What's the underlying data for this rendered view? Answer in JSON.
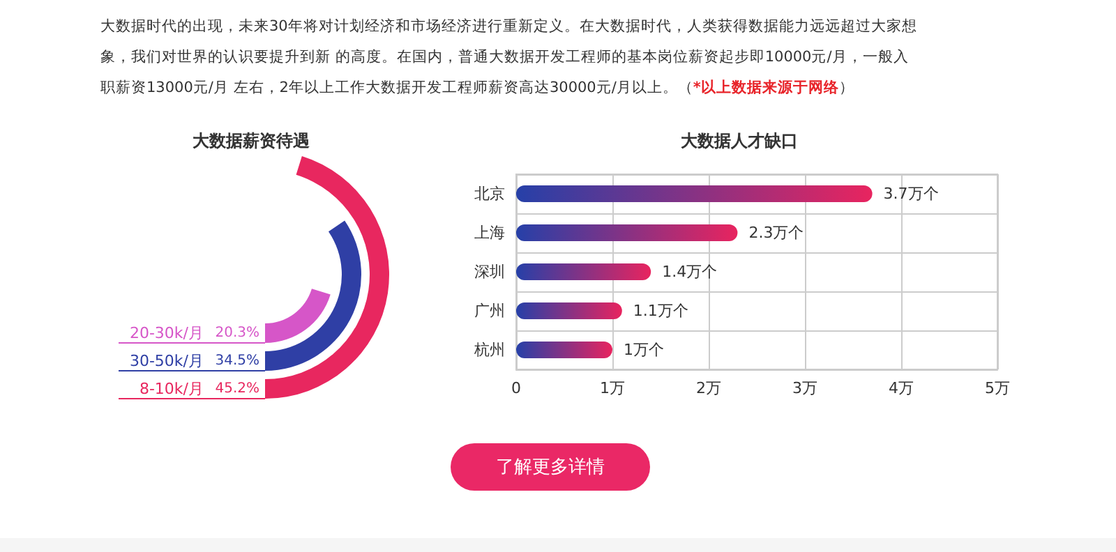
{
  "chart_data": [
    {
      "type": "other",
      "annotations": [
        "大数据时代的出现，未来30年将对计划经济和市场经济进行重新定义。在大数据时代，人类获得数据能力远远超过大家想象，我们对世界的认识要提升到新 的高度。在国内，普通大数据开发工程师的基本岗位薪资起步即10000元/月，一般入职薪资13000元/月 左右，2年以上工作大数据开发工程师薪资高达30000元/月以上。",
        "（*以上数据来源于网络）"
      ]
    },
    {
      "type": "other",
      "title": "大数据薪资待遇",
      "categories": [
        "8-10k/月",
        "30-50k/月",
        "20-30k/月"
      ],
      "values": [
        45.2,
        34.5,
        20.3
      ],
      "value_labels": [
        "45.2%",
        "34.5%",
        "20.3%"
      ],
      "colors": [
        "#e8275f",
        "#2f3fa5",
        "#d656c8"
      ]
    },
    {
      "type": "bar",
      "orientation": "horizontal",
      "title": "大数据人才缺口",
      "categories": [
        "北京",
        "上海",
        "深圳",
        "广州",
        "杭州"
      ],
      "series": [
        {
          "color": "#e8245f",
          "values": [
            3.7,
            2.3,
            1.4,
            1.1,
            1
          ],
          "value_labels": [
            "3.7万个",
            "2.3万个",
            "1.4万个",
            "1.1万个",
            "1万个"
          ]
        }
      ],
      "xlim": [
        0,
        5
      ],
      "xticks": [
        0,
        {
          "value": 1,
          "label": "1万"
        },
        {
          "value": 2,
          "label": "2万"
        },
        {
          "value": 3,
          "label": "3万"
        },
        {
          "value": 4,
          "label": "4万"
        },
        {
          "value": 5,
          "label": "5万"
        }
      ],
      "grid": true
    },
    {
      "type": "other",
      "annotations": [
        "了解更多详情"
      ]
    }
  ]
}
